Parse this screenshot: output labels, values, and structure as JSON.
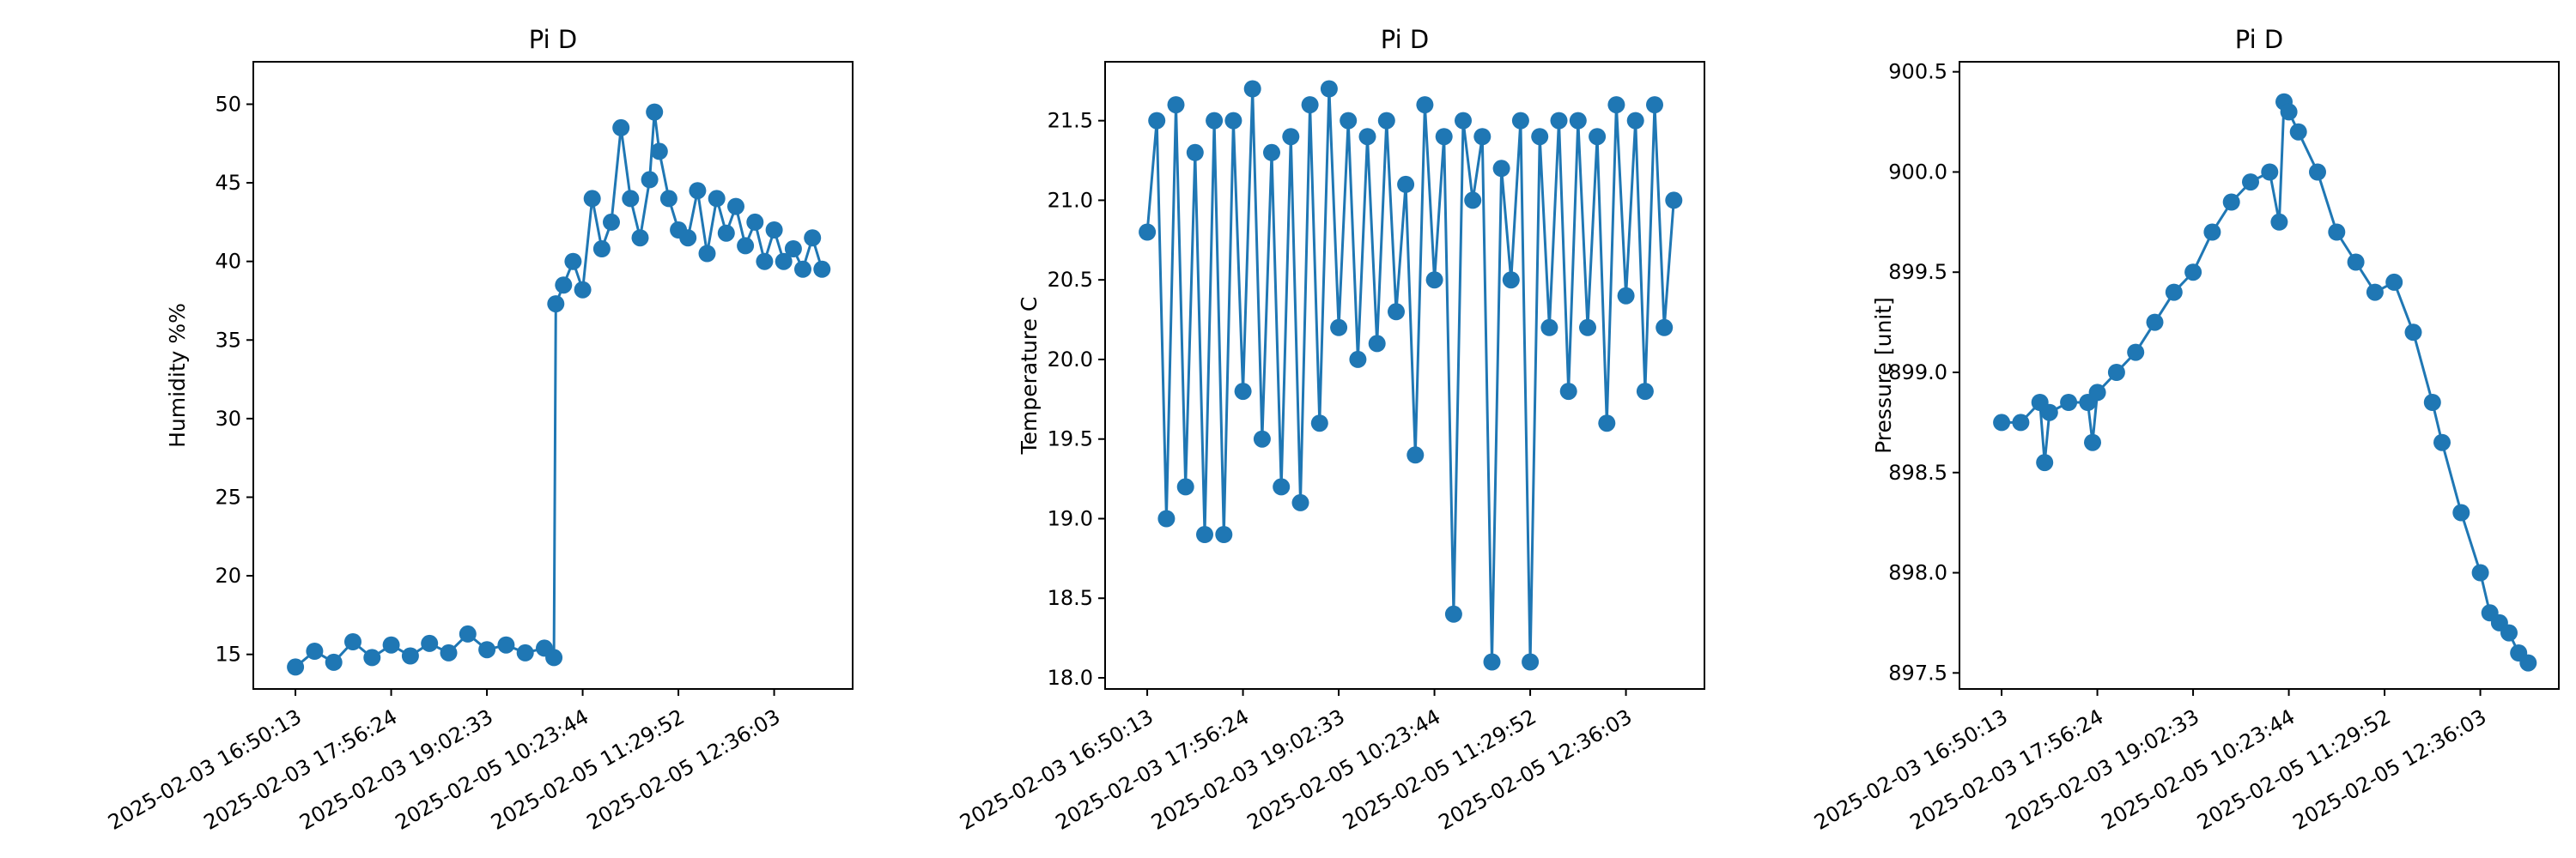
{
  "chart_data": [
    {
      "type": "line",
      "title": "Pi D",
      "xlabel": "",
      "ylabel": "Humidity %%",
      "marker": "circle",
      "color": "#1f77b4",
      "x_tick_labels": [
        "2025-02-03 16:50:13",
        "2025-02-03 17:56:24",
        "2025-02-03 19:02:33",
        "2025-02-05 10:23:44",
        "2025-02-05 11:29:52",
        "2025-02-05 12:36:03"
      ],
      "y_ticks": [
        15,
        20,
        25,
        30,
        35,
        40,
        45,
        50
      ],
      "ylim": [
        12.8,
        52.7
      ],
      "xlim": [
        -0.44,
        5.82
      ],
      "series": [
        {
          "x": [
            0,
            0.2,
            0.4,
            0.6,
            0.8,
            1.0,
            1.2,
            1.4,
            1.6,
            1.8,
            2.0,
            2.2,
            2.4,
            2.6,
            2.7,
            2.72,
            2.8,
            2.9,
            3.0,
            3.1,
            3.2,
            3.3,
            3.4,
            3.5,
            3.6,
            3.7,
            3.75,
            3.8,
            3.9,
            4.0,
            4.1,
            4.2,
            4.3,
            4.4,
            4.5,
            4.6,
            4.7,
            4.8,
            4.9,
            5.0,
            5.1,
            5.2,
            5.3,
            5.4,
            5.5
          ],
          "y": [
            14.2,
            15.2,
            14.5,
            15.8,
            14.8,
            15.6,
            14.9,
            15.7,
            15.1,
            16.3,
            15.3,
            15.6,
            15.1,
            15.4,
            14.8,
            37.3,
            38.5,
            40.0,
            38.2,
            44.0,
            40.8,
            42.5,
            48.5,
            44.0,
            41.5,
            45.2,
            49.5,
            47.0,
            44.0,
            42.0,
            41.5,
            44.5,
            40.5,
            44.0,
            41.8,
            43.5,
            41.0,
            42.5,
            40.0,
            42.0,
            40.0,
            40.8,
            39.5,
            41.5,
            39.5
          ]
        }
      ]
    },
    {
      "type": "line",
      "title": "Pi D",
      "xlabel": "",
      "ylabel": "Temperature C",
      "marker": "circle",
      "color": "#1f77b4",
      "x_tick_labels": [
        "2025-02-03 16:50:13",
        "2025-02-03 17:56:24",
        "2025-02-03 19:02:33",
        "2025-02-05 10:23:44",
        "2025-02-05 11:29:52",
        "2025-02-05 12:36:03"
      ],
      "y_ticks": [
        18.0,
        18.5,
        19.0,
        19.5,
        20.0,
        20.5,
        21.0,
        21.5
      ],
      "ylim": [
        17.93,
        21.87
      ],
      "xlim": [
        -0.44,
        5.82
      ],
      "series": [
        {
          "x": [
            0,
            0.1,
            0.2,
            0.3,
            0.4,
            0.5,
            0.6,
            0.7,
            0.8,
            0.9,
            1.0,
            1.1,
            1.2,
            1.3,
            1.4,
            1.5,
            1.6,
            1.7,
            1.8,
            1.9,
            2.0,
            2.1,
            2.2,
            2.3,
            2.4,
            2.5,
            2.6,
            2.7,
            2.8,
            2.9,
            3.0,
            3.1,
            3.2,
            3.3,
            3.4,
            3.5,
            3.6,
            3.7,
            3.8,
            3.9,
            4.0,
            4.1,
            4.2,
            4.3,
            4.4,
            4.5,
            4.6,
            4.7,
            4.8,
            4.9,
            5.0,
            5.1,
            5.2,
            5.3,
            5.4,
            5.5
          ],
          "y": [
            20.8,
            21.5,
            19.0,
            21.6,
            19.2,
            21.3,
            18.9,
            21.5,
            18.9,
            21.5,
            19.8,
            21.7,
            19.5,
            21.3,
            19.2,
            21.4,
            19.1,
            21.6,
            19.6,
            21.7,
            20.2,
            21.5,
            20.0,
            21.4,
            20.1,
            21.5,
            20.3,
            21.1,
            19.4,
            21.6,
            20.5,
            21.4,
            18.4,
            21.5,
            21.0,
            21.4,
            18.1,
            21.2,
            20.5,
            21.5,
            18.1,
            21.4,
            20.2,
            21.5,
            19.8,
            21.5,
            20.2,
            21.4,
            19.6,
            21.6,
            20.4,
            21.5,
            19.8,
            21.6,
            20.2,
            21.0
          ]
        }
      ]
    },
    {
      "type": "line",
      "title": "Pi D",
      "xlabel": "",
      "ylabel": "Pressure [unit]",
      "marker": "circle",
      "color": "#1f77b4",
      "x_tick_labels": [
        "2025-02-03 16:50:13",
        "2025-02-03 17:56:24",
        "2025-02-03 19:02:33",
        "2025-02-05 10:23:44",
        "2025-02-05 11:29:52",
        "2025-02-05 12:36:03"
      ],
      "y_ticks": [
        897.5,
        898.0,
        898.5,
        899.0,
        899.5,
        900.0,
        900.5
      ],
      "ylim": [
        897.42,
        900.55
      ],
      "xlim": [
        -0.44,
        5.82
      ],
      "series": [
        {
          "x": [
            0,
            0.2,
            0.4,
            0.45,
            0.5,
            0.7,
            0.9,
            0.95,
            1.0,
            1.2,
            1.4,
            1.6,
            1.8,
            2.0,
            2.2,
            2.4,
            2.6,
            2.8,
            2.9,
            2.95,
            3.0,
            3.1,
            3.3,
            3.5,
            3.7,
            3.9,
            4.1,
            4.3,
            4.5,
            4.6,
            4.8,
            5.0,
            5.1,
            5.2,
            5.3,
            5.4,
            5.5
          ],
          "y": [
            898.75,
            898.75,
            898.85,
            898.55,
            898.8,
            898.85,
            898.85,
            898.65,
            898.9,
            899.0,
            899.1,
            899.25,
            899.4,
            899.5,
            899.7,
            899.85,
            899.95,
            900.0,
            899.75,
            900.35,
            900.3,
            900.2,
            900.0,
            899.7,
            899.55,
            899.4,
            899.45,
            899.2,
            898.85,
            898.65,
            898.3,
            898.0,
            897.8,
            897.75,
            897.7,
            897.6,
            897.55
          ]
        }
      ]
    }
  ]
}
